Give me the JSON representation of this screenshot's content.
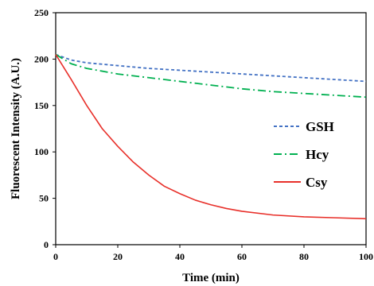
{
  "chart_data": {
    "type": "line",
    "xlabel": "Time (min)",
    "ylabel": "Fluorescent Intensity (A.U.)",
    "xlim": [
      0,
      100
    ],
    "ylim": [
      0,
      250
    ],
    "xticks": [
      "0",
      "20",
      "40",
      "60",
      "80",
      "100"
    ],
    "yticks": [
      "0",
      "50",
      "100",
      "150",
      "200",
      "250"
    ],
    "grid": false,
    "legend_position": "right",
    "series": [
      {
        "name": "GSH",
        "color": "#4472c4",
        "style": "dashed",
        "x": [
          0,
          5,
          10,
          20,
          30,
          40,
          50,
          60,
          70,
          80,
          90,
          100
        ],
        "y": [
          205,
          199,
          196,
          193,
          190,
          188,
          186,
          184,
          182,
          180,
          178,
          176
        ]
      },
      {
        "name": "Hcy",
        "color": "#00b050",
        "style": "dash-dot",
        "x": [
          0,
          5,
          10,
          20,
          30,
          40,
          50,
          60,
          70,
          80,
          90,
          100
        ],
        "y": [
          205,
          195,
          190,
          184,
          180,
          176,
          172,
          168,
          165,
          163,
          161,
          159
        ]
      },
      {
        "name": "Csy",
        "color": "#e8302a",
        "style": "solid",
        "x": [
          0,
          5,
          10,
          15,
          20,
          25,
          30,
          35,
          40,
          45,
          50,
          55,
          60,
          70,
          80,
          90,
          100
        ],
        "y": [
          205,
          178,
          150,
          125,
          106,
          89,
          75,
          63,
          55,
          48,
          43,
          39,
          36,
          32,
          30,
          29,
          28
        ]
      }
    ]
  }
}
